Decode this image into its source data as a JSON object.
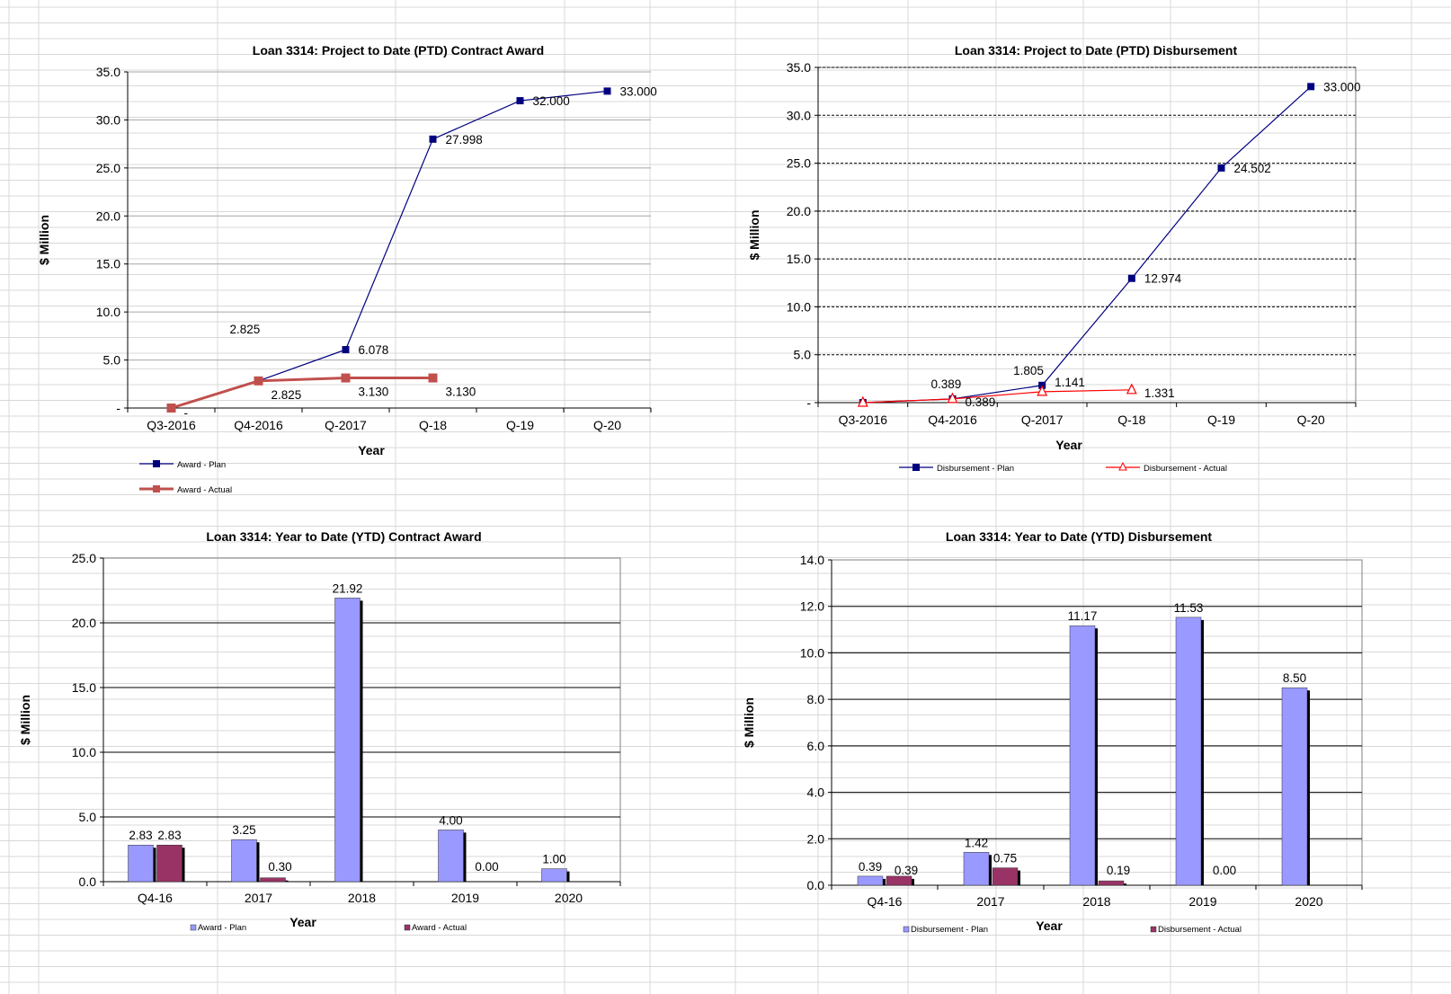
{
  "colors": {
    "plan_line": "#00007f",
    "award_actual_line": "#c0504d",
    "disb_actual_line": "#ff0000",
    "plan_bar": "#9999ff",
    "actual_bar": "#993366",
    "grid": "#d8d8d8"
  },
  "chart_data": [
    {
      "type": "line",
      "title": "Loan 3314: Project to Date (PTD) Contract Award",
      "xlabel": "Year",
      "ylabel": "$ Million",
      "categories": [
        "Q3-2016",
        "Q4-2016",
        "Q-2017",
        "Q-18",
        "Q-19",
        "Q-20"
      ],
      "ylim": [
        0,
        35
      ],
      "yticks": [
        "-",
        "5.0",
        "10.0",
        "15.0",
        "20.0",
        "25.0",
        "30.0",
        "35.0"
      ],
      "grid": "solid-gray",
      "legend_position": "bottom-left",
      "series": [
        {
          "name": "Award - Plan",
          "values": [
            0,
            2.825,
            6.078,
            27.998,
            32.0,
            33.0
          ],
          "labels": [
            "",
            "2.825",
            "6.078",
            "27.998",
            "32.000",
            "33.000"
          ],
          "marker": "square"
        },
        {
          "name": "Award - Actual",
          "values": [
            0,
            2.825,
            3.13,
            3.13,
            null,
            null
          ],
          "labels": [
            "-",
            "2.825",
            "3.130",
            "3.130",
            "",
            ""
          ],
          "marker": "square"
        }
      ]
    },
    {
      "type": "line",
      "title": "Loan 3314: Project to Date (PTD) Disbursement",
      "xlabel": "Year",
      "ylabel": "$ Million",
      "categories": [
        "Q3-2016",
        "Q4-2016",
        "Q-2017",
        "Q-18",
        "Q-19",
        "Q-20"
      ],
      "ylim": [
        0,
        35
      ],
      "yticks": [
        "-",
        "5.0",
        "10.0",
        "15.0",
        "20.0",
        "25.0",
        "30.0",
        "35.0"
      ],
      "grid": "dashed",
      "legend_position": "bottom",
      "series": [
        {
          "name": "Disbursement - Plan",
          "values": [
            0,
            0.389,
            1.805,
            12.974,
            24.502,
            33.0
          ],
          "labels": [
            "",
            "0.389",
            "1.805",
            "12.974",
            "24.502",
            "33.000"
          ],
          "marker": "square"
        },
        {
          "name": "Disbursement - Actual",
          "values": [
            0,
            0.389,
            1.141,
            1.331,
            null,
            null
          ],
          "labels": [
            "",
            "0.389",
            "1.141",
            "1.331",
            "",
            ""
          ],
          "marker": "triangle"
        }
      ]
    },
    {
      "type": "bar",
      "title": "Loan 3314: Year to Date (YTD) Contract Award",
      "xlabel": "Year",
      "ylabel": "$ Million",
      "categories": [
        "Q4-16",
        "2017",
        "2018",
        "2019",
        "2020"
      ],
      "ylim": [
        0,
        25
      ],
      "yticks": [
        "0.0",
        "5.0",
        "10.0",
        "15.0",
        "20.0",
        "25.0"
      ],
      "grid": "solid",
      "legend_position": "bottom",
      "series": [
        {
          "name": "Award - Plan",
          "values": [
            2.83,
            3.25,
            21.92,
            4.0,
            1.0
          ],
          "labels": [
            "2.83",
            "3.25",
            "21.92",
            "4.00",
            "1.00"
          ]
        },
        {
          "name": "Award - Actual",
          "values": [
            2.83,
            0.3,
            null,
            0.0,
            null
          ],
          "labels": [
            "2.83",
            "0.30",
            "",
            "0.00",
            ""
          ]
        }
      ]
    },
    {
      "type": "bar",
      "title": "Loan 3314: Year to Date (YTD) Disbursement",
      "xlabel": "Year",
      "ylabel": "$ Million",
      "categories": [
        "Q4-16",
        "2017",
        "2018",
        "2019",
        "2020"
      ],
      "ylim": [
        0,
        14
      ],
      "yticks": [
        "0.0",
        "2.0",
        "4.0",
        "6.0",
        "8.0",
        "10.0",
        "12.0",
        "14.0"
      ],
      "grid": "solid",
      "legend_position": "bottom",
      "series": [
        {
          "name": "Disbursement - Plan",
          "values": [
            0.39,
            1.42,
            11.17,
            11.53,
            8.5
          ],
          "labels": [
            "0.39",
            "1.42",
            "11.17",
            "11.53",
            "8.50"
          ]
        },
        {
          "name": "Disbursement - Actual",
          "values": [
            0.39,
            0.75,
            0.19,
            0.0,
            null
          ],
          "labels": [
            "0.39",
            "0.75",
            "0.19",
            "0.00",
            ""
          ]
        }
      ]
    }
  ]
}
